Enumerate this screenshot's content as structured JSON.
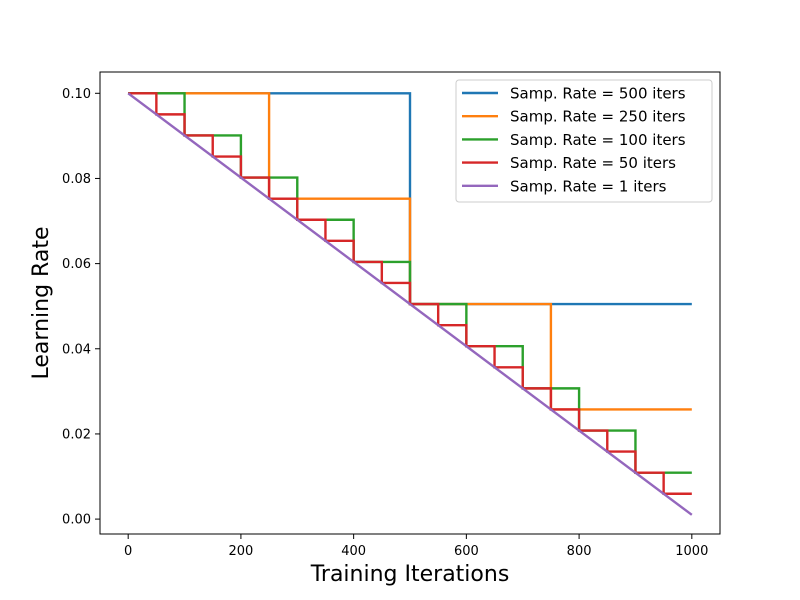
{
  "chart_data": {
    "type": "line",
    "title": "",
    "xlabel": "Training Iterations",
    "ylabel": "Learning Rate",
    "xlim": [
      -50,
      1050
    ],
    "ylim": [
      -0.0035,
      0.105
    ],
    "x_ticks": [
      0,
      200,
      400,
      600,
      800,
      1000
    ],
    "y_ticks": [
      0.0,
      0.02,
      0.04,
      0.06,
      0.08,
      0.1
    ],
    "x_tick_labels": [
      "0",
      "200",
      "400",
      "600",
      "800",
      "1000"
    ],
    "y_tick_labels": [
      "0.00",
      "0.02",
      "0.04",
      "0.06",
      "0.08",
      "0.10"
    ],
    "grid": false,
    "legend_position": "top-right",
    "lr_start": 0.1,
    "lr_end": 0.001,
    "total_iters": 1000,
    "series": [
      {
        "name": "Samp. Rate = 500 iters",
        "sample_rate": 500,
        "color": "#1f77b4"
      },
      {
        "name": "Samp. Rate = 250 iters",
        "sample_rate": 250,
        "color": "#ff7f0e"
      },
      {
        "name": "Samp. Rate = 100 iters",
        "sample_rate": 100,
        "color": "#2ca02c"
      },
      {
        "name": "Samp. Rate = 50 iters",
        "sample_rate": 50,
        "color": "#d62728"
      },
      {
        "name": "Samp. Rate = 1 iters",
        "sample_rate": 1,
        "color": "#9467bd"
      }
    ]
  }
}
